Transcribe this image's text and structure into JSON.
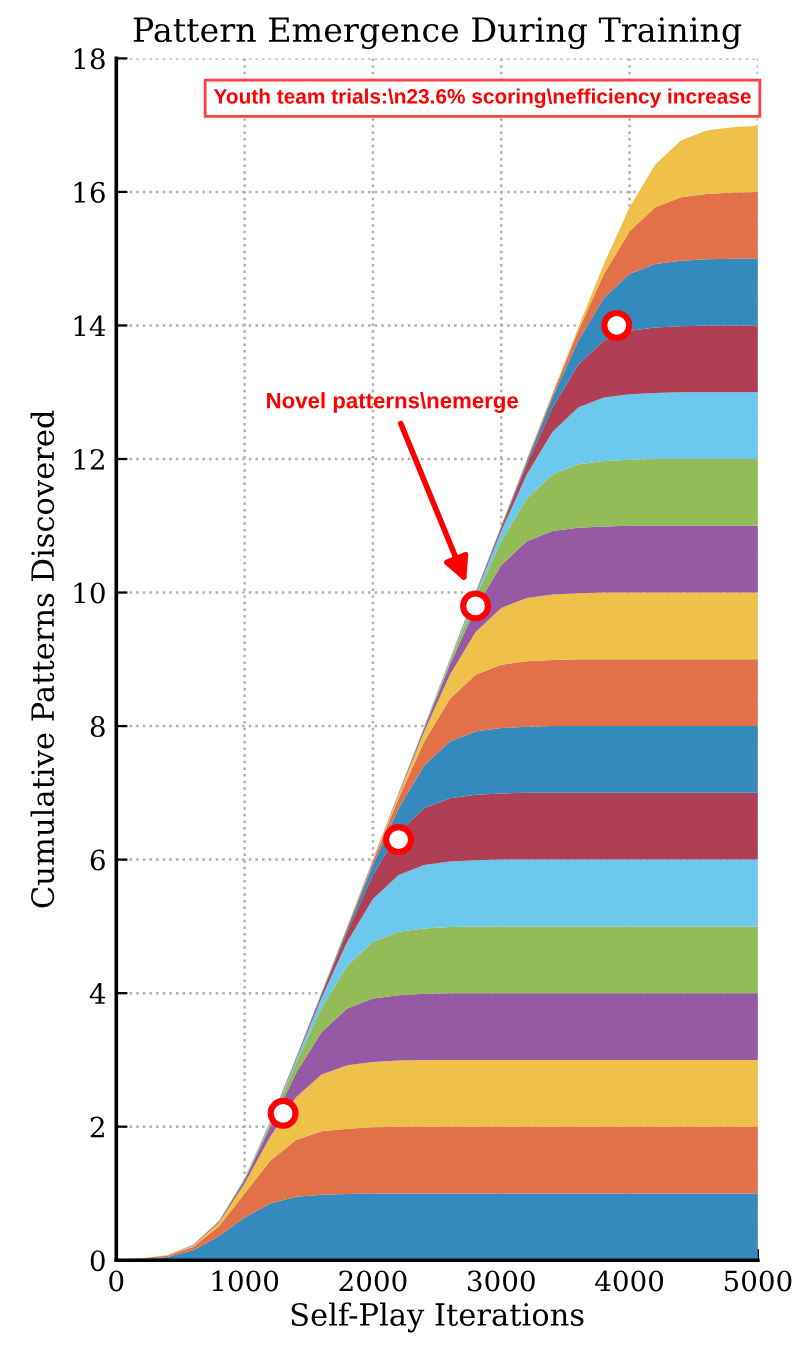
{
  "chart_data": {
    "type": "area",
    "stacked": true,
    "title": "Pattern Emergence During Training",
    "xlabel": "Self-Play Iterations",
    "ylabel": "Cumulative Patterns Discovered",
    "x": [
      0,
      200,
      400,
      600,
      800,
      1000,
      1200,
      1400,
      1600,
      1800,
      2000,
      2200,
      2400,
      2600,
      2800,
      3000,
      3200,
      3400,
      3600,
      3800,
      4000,
      4200,
      4400,
      4600,
      4800,
      5000
    ],
    "xlim": [
      0,
      5000
    ],
    "xticks": [
      0,
      1000,
      2000,
      3000,
      4000,
      5000
    ],
    "ylim": [
      0,
      18
    ],
    "yticks": [
      0,
      2,
      4,
      6,
      8,
      10,
      12,
      14,
      16,
      18
    ],
    "grid": true,
    "legend": false,
    "series": [
      {
        "color": "#348abd",
        "values": [
          0.01,
          0.02,
          0.05,
          0.15,
          0.36,
          0.64,
          0.85,
          0.95,
          0.98,
          0.99,
          1,
          1,
          1,
          1,
          1,
          1,
          1,
          1,
          1,
          1,
          1,
          1,
          1,
          1,
          1,
          1
        ]
      },
      {
        "color": "#e2714a",
        "values": [
          0,
          0.01,
          0.02,
          0.05,
          0.15,
          0.36,
          0.64,
          0.85,
          0.95,
          0.98,
          0.99,
          1,
          1,
          1,
          1,
          1,
          1,
          1,
          1,
          1,
          1,
          1,
          1,
          1,
          1,
          1
        ]
      },
      {
        "color": "#efc04a",
        "values": [
          0,
          0,
          0.01,
          0.02,
          0.05,
          0.15,
          0.36,
          0.64,
          0.85,
          0.95,
          0.98,
          0.99,
          1,
          1,
          1,
          1,
          1,
          1,
          1,
          1,
          1,
          1,
          1,
          1,
          1,
          1
        ]
      },
      {
        "color": "#9659a4",
        "values": [
          0,
          0,
          0,
          0.01,
          0.02,
          0.05,
          0.15,
          0.36,
          0.64,
          0.85,
          0.95,
          0.98,
          0.99,
          1,
          1,
          1,
          1,
          1,
          1,
          1,
          1,
          1,
          1,
          1,
          1,
          1
        ]
      },
      {
        "color": "#93bb58",
        "values": [
          0,
          0,
          0,
          0,
          0.01,
          0.02,
          0.05,
          0.15,
          0.36,
          0.64,
          0.85,
          0.95,
          0.98,
          0.99,
          1,
          1,
          1,
          1,
          1,
          1,
          1,
          1,
          1,
          1,
          1,
          1
        ]
      },
      {
        "color": "#6dc8ee",
        "values": [
          0,
          0,
          0,
          0,
          0,
          0.01,
          0.02,
          0.05,
          0.15,
          0.36,
          0.64,
          0.85,
          0.95,
          0.98,
          0.99,
          1,
          1,
          1,
          1,
          1,
          1,
          1,
          1,
          1,
          1,
          1
        ]
      },
      {
        "color": "#b03f56",
        "values": [
          0,
          0,
          0,
          0,
          0,
          0,
          0.01,
          0.02,
          0.05,
          0.15,
          0.36,
          0.64,
          0.85,
          0.95,
          0.98,
          0.99,
          1,
          1,
          1,
          1,
          1,
          1,
          1,
          1,
          1,
          1
        ]
      },
      {
        "color": "#348abd",
        "values": [
          0,
          0,
          0,
          0,
          0,
          0,
          0,
          0.01,
          0.02,
          0.05,
          0.15,
          0.36,
          0.64,
          0.85,
          0.95,
          0.98,
          0.99,
          1,
          1,
          1,
          1,
          1,
          1,
          1,
          1,
          1
        ]
      },
      {
        "color": "#e2714a",
        "values": [
          0,
          0,
          0,
          0,
          0,
          0,
          0,
          0,
          0.01,
          0.02,
          0.05,
          0.15,
          0.36,
          0.64,
          0.85,
          0.95,
          0.98,
          0.99,
          1,
          1,
          1,
          1,
          1,
          1,
          1,
          1
        ]
      },
      {
        "color": "#efc04a",
        "values": [
          0,
          0,
          0,
          0,
          0,
          0,
          0,
          0,
          0,
          0.01,
          0.02,
          0.05,
          0.15,
          0.36,
          0.64,
          0.85,
          0.95,
          0.98,
          0.99,
          1,
          1,
          1,
          1,
          1,
          1,
          1
        ]
      },
      {
        "color": "#9659a4",
        "values": [
          0,
          0,
          0,
          0,
          0,
          0,
          0,
          0,
          0,
          0,
          0.01,
          0.02,
          0.05,
          0.15,
          0.36,
          0.64,
          0.85,
          0.95,
          0.98,
          0.99,
          1,
          1,
          1,
          1,
          1,
          1
        ]
      },
      {
        "color": "#93bb58",
        "values": [
          0,
          0,
          0,
          0,
          0,
          0,
          0,
          0,
          0,
          0,
          0,
          0.01,
          0.02,
          0.05,
          0.15,
          0.36,
          0.64,
          0.85,
          0.95,
          0.98,
          0.99,
          1,
          1,
          1,
          1,
          1
        ]
      },
      {
        "color": "#6dc8ee",
        "values": [
          0,
          0,
          0,
          0,
          0,
          0,
          0,
          0,
          0,
          0,
          0,
          0,
          0.01,
          0.02,
          0.05,
          0.15,
          0.36,
          0.64,
          0.85,
          0.95,
          0.98,
          0.99,
          1,
          1,
          1,
          1
        ]
      },
      {
        "color": "#b03f56",
        "values": [
          0,
          0,
          0,
          0,
          0,
          0,
          0,
          0,
          0,
          0,
          0,
          0,
          0,
          0.01,
          0.02,
          0.05,
          0.15,
          0.36,
          0.64,
          0.85,
          0.95,
          0.98,
          0.99,
          1,
          1,
          1
        ]
      },
      {
        "color": "#348abd",
        "values": [
          0,
          0,
          0,
          0,
          0,
          0,
          0,
          0,
          0,
          0,
          0,
          0,
          0,
          0,
          0.01,
          0.02,
          0.05,
          0.15,
          0.36,
          0.64,
          0.85,
          0.95,
          0.98,
          0.99,
          1,
          1
        ]
      },
      {
        "color": "#e2714a",
        "values": [
          0,
          0,
          0,
          0,
          0,
          0,
          0,
          0,
          0,
          0,
          0,
          0,
          0,
          0,
          0,
          0.01,
          0.02,
          0.05,
          0.15,
          0.36,
          0.64,
          0.85,
          0.95,
          0.98,
          0.99,
          1
        ]
      },
      {
        "color": "#efc04a",
        "values": [
          0,
          0,
          0,
          0,
          0,
          0,
          0,
          0,
          0,
          0,
          0,
          0,
          0,
          0,
          0,
          0,
          0.01,
          0.02,
          0.05,
          0.15,
          0.36,
          0.64,
          0.85,
          0.95,
          0.98,
          0.99
        ]
      },
      {
        "type": "scatter",
        "color": "#ff0000",
        "marker": "circle",
        "x": [
          1300,
          2200,
          2800,
          3900
        ],
        "values": [
          2.2,
          6.3,
          9.8,
          14.0
        ]
      }
    ],
    "annotations": [
      "Novel patterns\\nemerge",
      "Youth team trials:\\n23.6% scoring\\nefficiency increase"
    ]
  }
}
